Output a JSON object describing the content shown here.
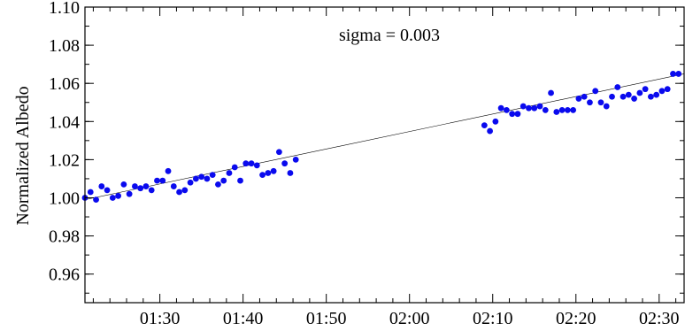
{
  "colors": {
    "points": "#0a0aee",
    "annotation": "#1a1ad0",
    "fit_line": "#000000",
    "axes": "#000000"
  },
  "chart_data": {
    "type": "scatter",
    "title": "",
    "xlabel": "",
    "ylabel": "Normalized Albedo",
    "annotation": "sigma = 0.003",
    "grid": false,
    "legend": "none",
    "x_unit": "minutes after 01:21",
    "xlim": [
      "01:21",
      "02:33"
    ],
    "ylim": [
      0.945,
      1.1
    ],
    "x_ticks": [
      "01:30",
      "01:40",
      "01:50",
      "02:00",
      "02:10",
      "02:20",
      "02:30"
    ],
    "y_ticks": [
      "0.96",
      "0.98",
      "1.00",
      "1.02",
      "1.04",
      "1.06",
      "1.08",
      "1.10"
    ],
    "fit_line": {
      "x": [
        "01:21",
        "02:33"
      ],
      "y": [
        0.999,
        1.065
      ]
    },
    "series": [
      {
        "x": [
          "01:21:00",
          "01:21:40",
          "01:22:20",
          "01:23:00",
          "01:23:40",
          "01:24:20",
          "01:25:00",
          "01:25:40",
          "01:26:20",
          "01:27:00",
          "01:27:40",
          "01:28:20",
          "01:29:00",
          "01:29:40",
          "01:30:20",
          "01:31:00",
          "01:31:40",
          "01:32:20",
          "01:33:00",
          "01:33:40",
          "01:34:20",
          "01:35:00",
          "01:35:40",
          "01:36:20",
          "01:37:00",
          "01:37:40",
          "01:38:20",
          "01:39:00",
          "01:39:40",
          "01:40:20",
          "01:41:00",
          "01:41:40",
          "01:42:20",
          "01:43:00",
          "01:43:40",
          "01:44:20",
          "01:45:00",
          "01:45:40",
          "01:46:20",
          "02:09:00",
          "02:09:40",
          "02:10:20",
          "02:11:00",
          "02:11:40",
          "02:12:20",
          "02:13:00",
          "02:13:40",
          "02:14:20",
          "02:15:00",
          "02:15:40",
          "02:16:20",
          "02:17:00",
          "02:17:40",
          "02:18:20",
          "02:19:00",
          "02:19:40",
          "02:20:20",
          "02:21:00",
          "02:21:40",
          "02:22:20",
          "02:23:00",
          "02:23:40",
          "02:24:20",
          "02:25:00",
          "02:25:40",
          "02:26:20",
          "02:27:00",
          "02:27:40",
          "02:28:20",
          "02:29:00",
          "02:29:40",
          "02:30:20",
          "02:31:00",
          "02:31:40",
          "02:32:20"
        ],
        "y": [
          1.0,
          1.003,
          0.999,
          1.006,
          1.004,
          1.0,
          1.001,
          1.007,
          1.002,
          1.006,
          1.005,
          1.006,
          1.004,
          1.009,
          1.009,
          1.014,
          1.006,
          1.003,
          1.004,
          1.008,
          1.01,
          1.011,
          1.01,
          1.012,
          1.007,
          1.009,
          1.013,
          1.016,
          1.009,
          1.018,
          1.018,
          1.017,
          1.012,
          1.013,
          1.014,
          1.024,
          1.018,
          1.013,
          1.02,
          1.038,
          1.035,
          1.04,
          1.047,
          1.046,
          1.044,
          1.044,
          1.048,
          1.047,
          1.047,
          1.048,
          1.046,
          1.055,
          1.045,
          1.046,
          1.046,
          1.046,
          1.052,
          1.053,
          1.05,
          1.056,
          1.05,
          1.048,
          1.053,
          1.058,
          1.053,
          1.054,
          1.052,
          1.055,
          1.057,
          1.053,
          1.054,
          1.056,
          1.057,
          1.065,
          1.065
        ]
      }
    ]
  }
}
